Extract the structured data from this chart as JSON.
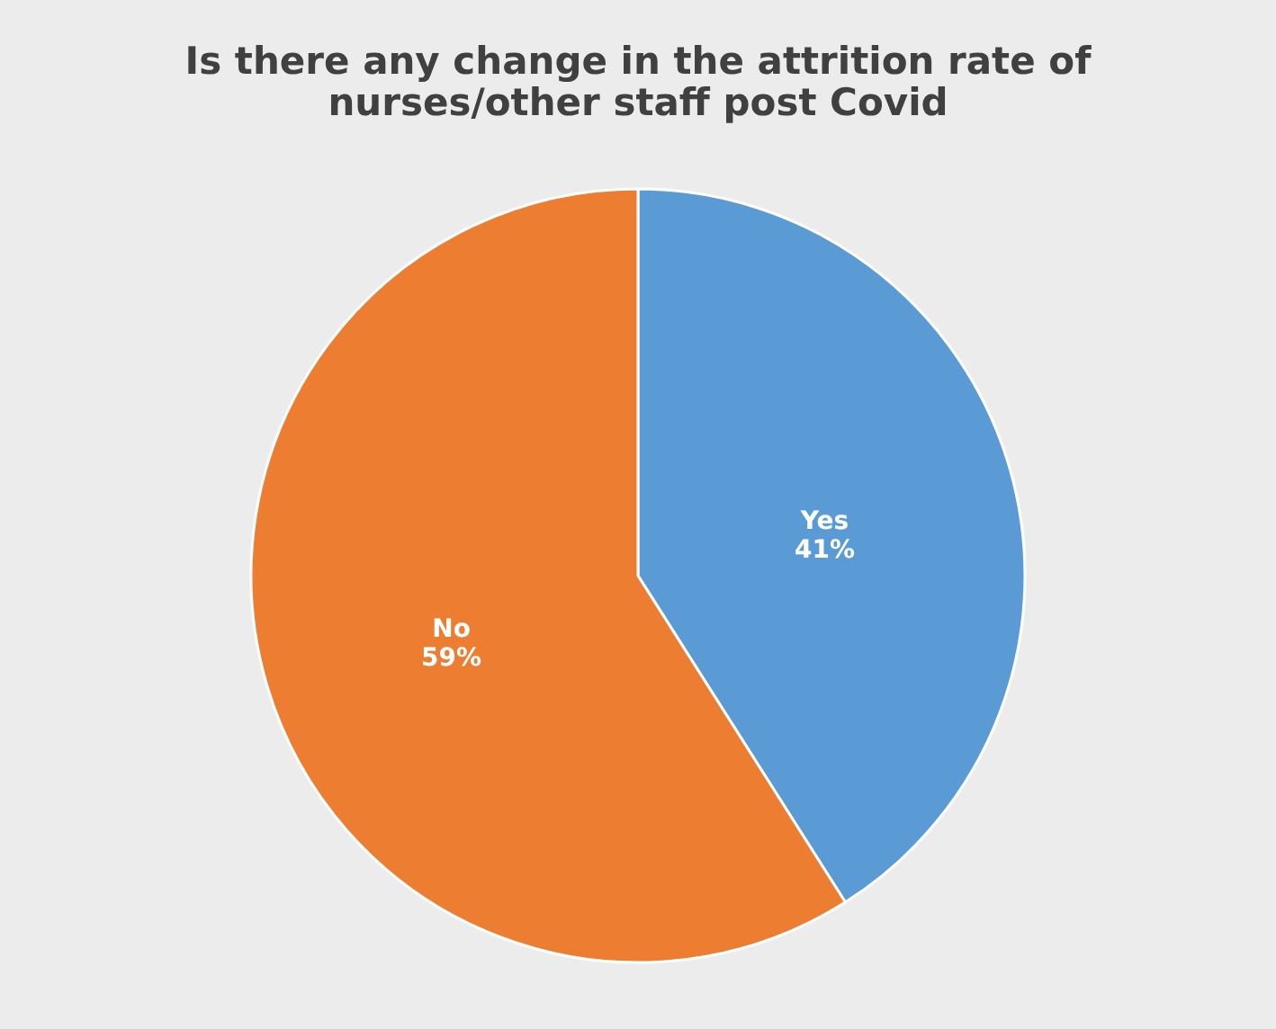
{
  "chart_data": {
    "type": "pie",
    "title": "Is there any change in the attrition rate of nurses/other staff post Covid",
    "categories": [
      "Yes",
      "No"
    ],
    "values": [
      41,
      59
    ],
    "colors": [
      "#5b9bd5",
      "#ed7d31"
    ],
    "value_labels": [
      "41%",
      "59%"
    ],
    "legend": false
  }
}
